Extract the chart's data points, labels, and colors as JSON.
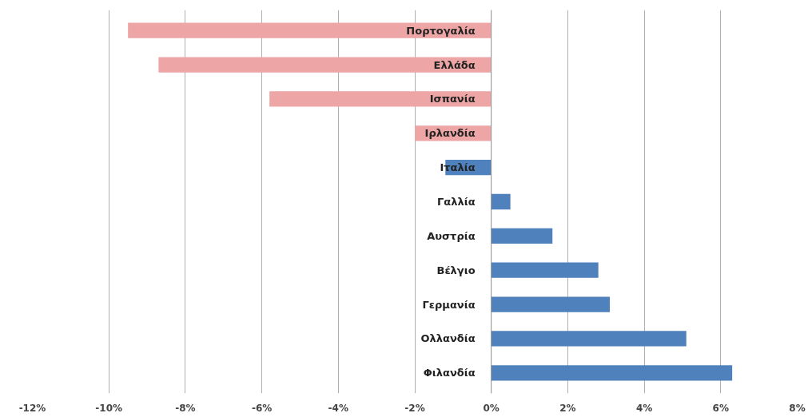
{
  "chart_data": {
    "type": "bar",
    "orientation": "horizontal",
    "categories": [
      "Πορτογαλία",
      "Ελλάδα",
      "Ισπανία",
      "Ιρλανδία",
      "Ιταλία",
      "Γαλλία",
      "Αυστρία",
      "Βέλγιο",
      "Γερμανία",
      "Ολλανδία",
      "Φιλανδία"
    ],
    "values": [
      -9.5,
      -8.7,
      -5.8,
      -2.0,
      -1.2,
      0.5,
      1.6,
      2.8,
      3.1,
      5.1,
      6.3
    ],
    "colors": [
      "#eda5a5",
      "#eda5a5",
      "#eda5a5",
      "#eda5a5",
      "#4f81bd",
      "#4f81bd",
      "#4f81bd",
      "#4f81bd",
      "#4f81bd",
      "#4f81bd",
      "#4f81bd"
    ],
    "xlim": [
      -12,
      8
    ],
    "xticks": [
      {
        "value": -12,
        "label": "-12%"
      },
      {
        "value": -10,
        "label": "-10%"
      },
      {
        "value": -8,
        "label": "-8%"
      },
      {
        "value": -6,
        "label": "-6%"
      },
      {
        "value": -4,
        "label": "-4%"
      },
      {
        "value": -2,
        "label": "-2%"
      },
      {
        "value": 0,
        "label": "0%"
      },
      {
        "value": 2,
        "label": "2%"
      },
      {
        "value": 4,
        "label": "4%"
      },
      {
        "value": 6,
        "label": "6%"
      },
      {
        "value": 8,
        "label": "8%"
      }
    ],
    "grid": "x"
  }
}
